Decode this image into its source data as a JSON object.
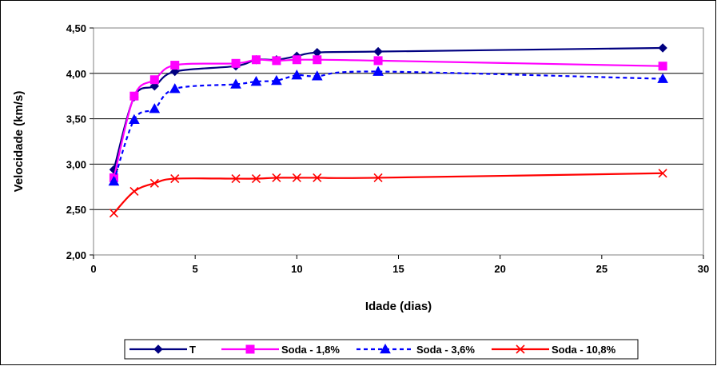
{
  "chart_data": {
    "type": "line",
    "title": "",
    "xlabel": "Idade (dias)",
    "ylabel": "Velocidade (km/s)",
    "xlim": [
      0,
      30
    ],
    "ylim": [
      2.0,
      4.5
    ],
    "xticks": [
      0,
      5,
      10,
      15,
      20,
      25,
      30
    ],
    "xtick_labels": [
      "0",
      "5",
      "10",
      "15",
      "20",
      "25",
      "30"
    ],
    "yticks": [
      2.0,
      2.5,
      3.0,
      3.5,
      4.0,
      4.5
    ],
    "ytick_labels": [
      "2,00",
      "2,50",
      "3,00",
      "3,50",
      "4,00",
      "4,50"
    ],
    "grid": "horizontal",
    "legend_position": "bottom",
    "series": [
      {
        "name": "T",
        "color": "#000080",
        "marker": "diamond",
        "dash": "solid",
        "x": [
          1,
          2,
          3,
          4,
          7,
          8,
          9,
          10,
          11,
          14,
          28
        ],
        "y": [
          2.94,
          3.74,
          3.86,
          4.02,
          4.08,
          4.15,
          4.15,
          4.19,
          4.23,
          4.24,
          4.28
        ]
      },
      {
        "name": "Soda - 1,8%",
        "color": "#FF00FF",
        "marker": "square",
        "dash": "solid",
        "x": [
          1,
          2,
          3,
          4,
          7,
          8,
          9,
          10,
          11,
          14,
          28
        ],
        "y": [
          2.85,
          3.75,
          3.93,
          4.09,
          4.11,
          4.15,
          4.14,
          4.15,
          4.15,
          4.14,
          4.08
        ]
      },
      {
        "name": "Soda - 3,6%",
        "color": "#0000FF",
        "marker": "triangle",
        "dash": "dashed",
        "x": [
          1,
          2,
          3,
          4,
          7,
          8,
          9,
          10,
          11,
          14,
          28
        ],
        "y": [
          2.81,
          3.49,
          3.61,
          3.83,
          3.88,
          3.91,
          3.92,
          3.98,
          3.97,
          4.02,
          3.94
        ]
      },
      {
        "name": "Soda - 10,8%",
        "color": "#FF0000",
        "marker": "x",
        "dash": "solid",
        "x": [
          1,
          2,
          3,
          4,
          7,
          8,
          9,
          10,
          11,
          14,
          28
        ],
        "y": [
          2.46,
          2.7,
          2.79,
          2.84,
          2.84,
          2.84,
          2.85,
          2.85,
          2.85,
          2.85,
          2.9
        ]
      }
    ]
  }
}
